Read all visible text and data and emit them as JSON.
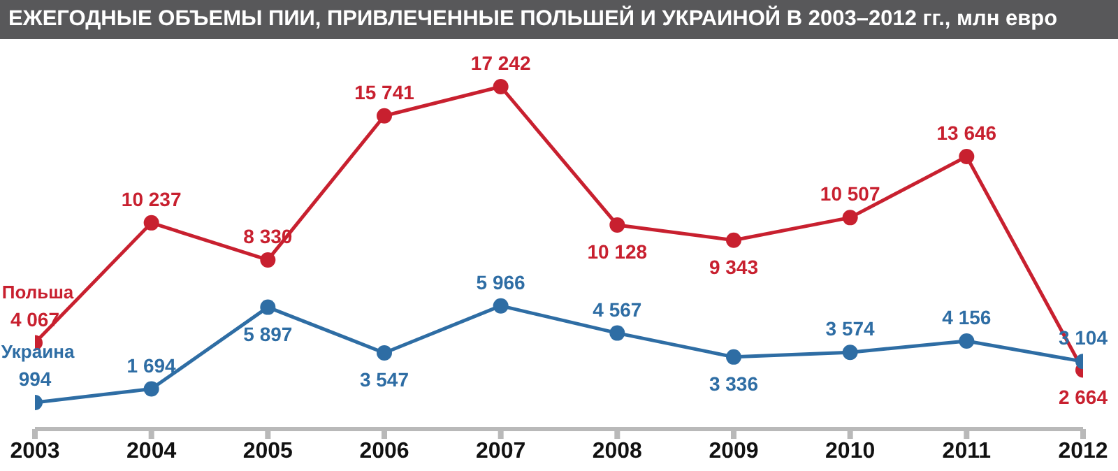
{
  "chart_data": {
    "type": "line",
    "title": "ЕЖЕГОДНЫЕ ОБЪЕМЫ ПИИ, ПРИВЛЕЧЕННЫЕ ПОЛЬШЕЙ И УКРАИНОЙ В 2003–2012 гг., млн евро",
    "categories": [
      "2003",
      "2004",
      "2005",
      "2006",
      "2007",
      "2008",
      "2009",
      "2010",
      "2011",
      "2012"
    ],
    "marker": "circle",
    "series": [
      {
        "name": "Польша",
        "color": "#c8202f",
        "values": [
          4067,
          10237,
          8330,
          15741,
          17242,
          10128,
          9343,
          10507,
          13646,
          2664
        ],
        "value_labels": [
          "4 067",
          "10 237",
          "8 330",
          "15 741",
          "17 242",
          "10 128",
          "9 343",
          "10 507",
          "13 646",
          "2 664"
        ]
      },
      {
        "name": "Украина",
        "color": "#2e6da4",
        "values": [
          994,
          1694,
          5897,
          3547,
          5966,
          4567,
          3336,
          3574,
          4156,
          3104
        ],
        "value_labels": [
          "994",
          "1 694",
          "5 897",
          "3 547",
          "5 966",
          "4 567",
          "3 336",
          "3 574",
          "4 156",
          "3 104"
        ]
      }
    ]
  }
}
